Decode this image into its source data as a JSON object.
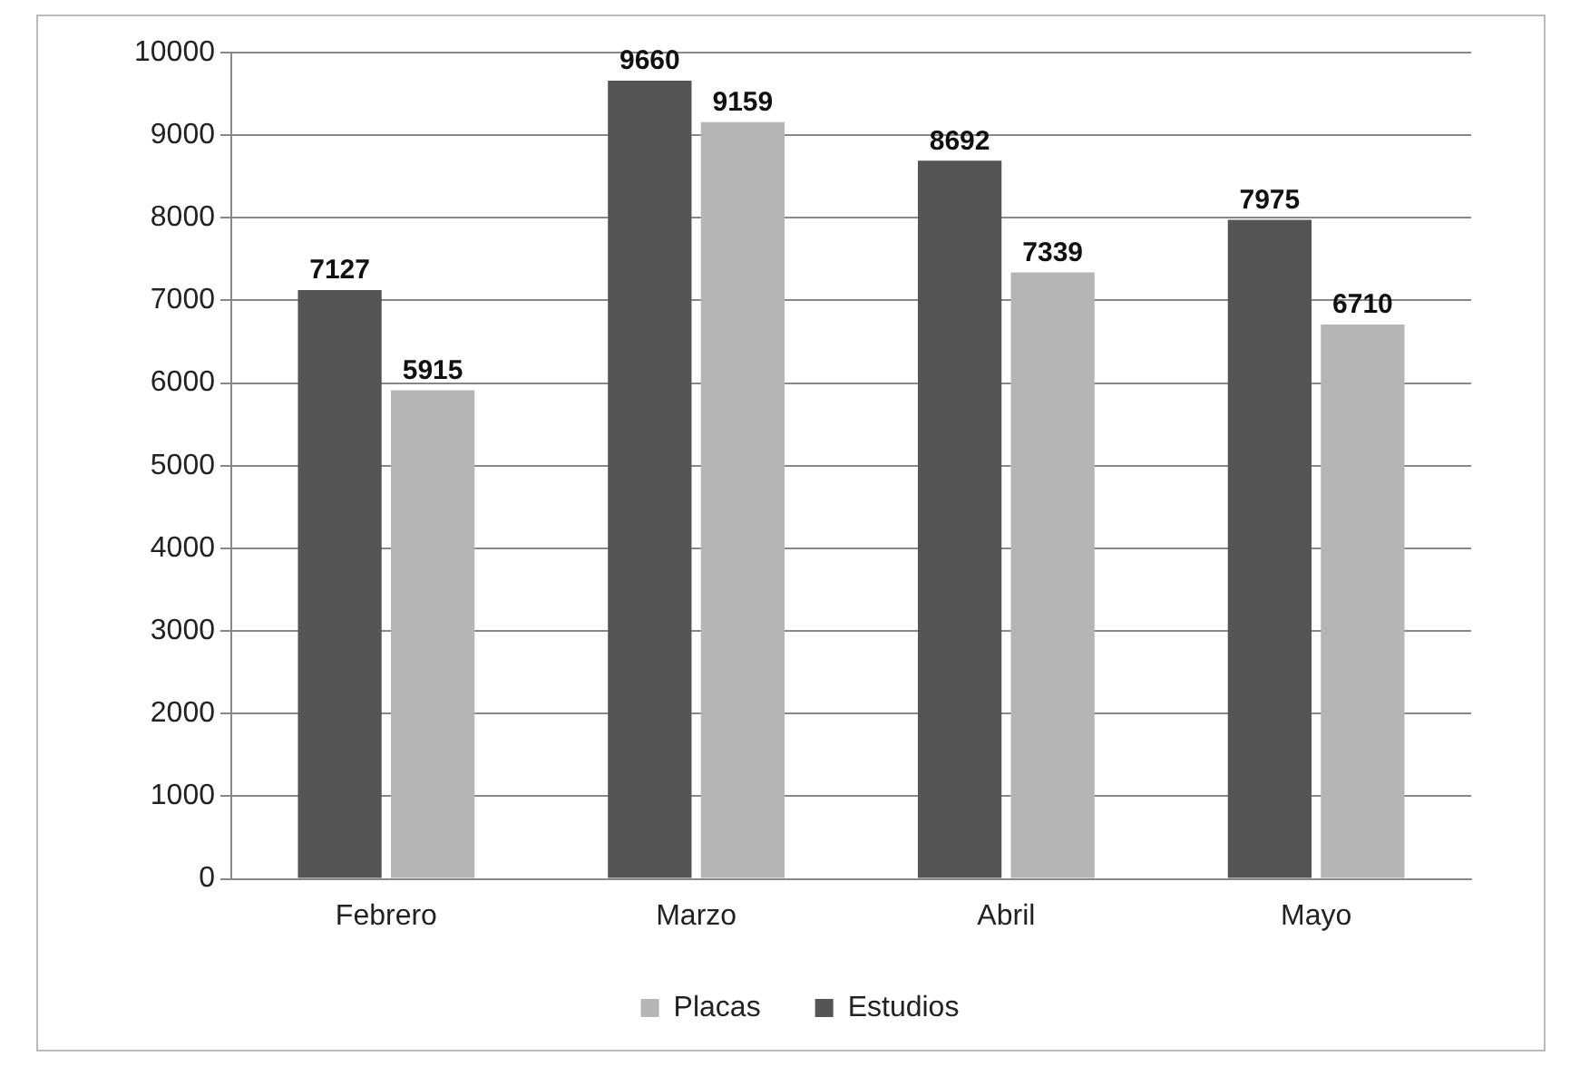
{
  "chart_data": {
    "type": "bar",
    "categories": [
      "Febrero",
      "Marzo",
      "Abril",
      "Mayo"
    ],
    "series": [
      {
        "name": "Estudios",
        "color": "#555555",
        "values": [
          7127,
          9660,
          8692,
          7975
        ]
      },
      {
        "name": "Placas",
        "color": "#b5b5b5",
        "values": [
          5915,
          9159,
          7339,
          6710
        ]
      }
    ],
    "ylim": [
      0,
      10000
    ],
    "yticks": [
      0,
      1000,
      2000,
      3000,
      4000,
      5000,
      6000,
      7000,
      8000,
      9000,
      10000
    ],
    "grid": "y",
    "legend": "bottom",
    "data_labels": true
  }
}
